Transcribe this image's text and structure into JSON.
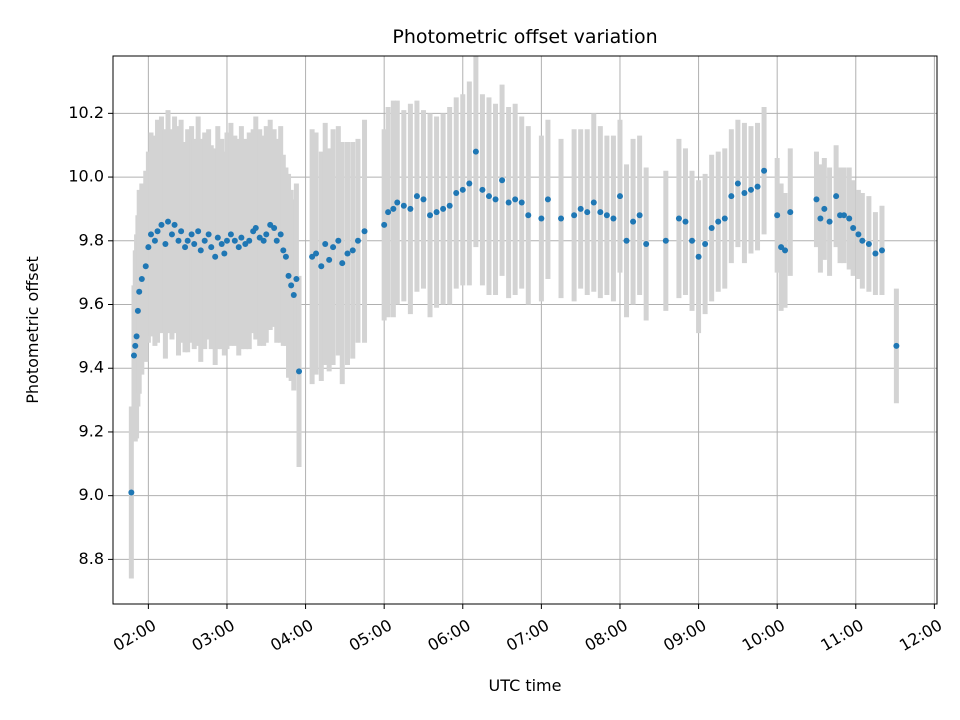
{
  "chart_data": {
    "type": "scatter",
    "title": "Photometric offset variation",
    "xlabel": "UTC time",
    "ylabel": "Photometric offset",
    "x_tick_labels": [
      "02:00",
      "03:00",
      "04:00",
      "05:00",
      "06:00",
      "07:00",
      "08:00",
      "09:00",
      "10:00",
      "11:00",
      "12:00"
    ],
    "y_tick_labels": [
      "8.8",
      "9.0",
      "9.2",
      "9.4",
      "9.6",
      "9.8",
      "10.0",
      "10.2"
    ],
    "x_ticks": [
      "02:00",
      "03:00",
      "04:00",
      "05:00",
      "06:00",
      "07:00",
      "08:00",
      "09:00",
      "10:00",
      "11:00",
      "12:00"
    ],
    "y_ticks": [
      8.8,
      9.0,
      9.2,
      9.4,
      9.6,
      9.8,
      10.0,
      10.2
    ],
    "xlim": [
      "01:33",
      "12:02"
    ],
    "ylim": [
      8.66,
      10.38
    ],
    "grid": true,
    "colors": {
      "point": "#1f77b4",
      "errorbar": "#d3d3d3",
      "grid": "#b0b0b0"
    },
    "series": [
      {
        "x": [
          "01:47",
          "01:49",
          "01:50",
          "01:51",
          "01:52",
          "01:53",
          "01:55",
          "01:58",
          "02:00",
          "02:02",
          "02:05",
          "02:07",
          "02:10",
          "02:13",
          "02:15",
          "02:18",
          "02:20",
          "02:23",
          "02:25",
          "02:28",
          "02:30",
          "02:33",
          "02:35",
          "02:38",
          "02:40",
          "02:43",
          "02:46",
          "02:48",
          "02:51",
          "02:53",
          "02:56",
          "02:58",
          "03:00",
          "03:03",
          "03:06",
          "03:09",
          "03:11",
          "03:14",
          "03:17",
          "03:20",
          "03:22",
          "03:25",
          "03:28",
          "03:30",
          "03:33",
          "03:36",
          "03:38",
          "03:41",
          "03:43",
          "03:45",
          "03:47",
          "03:49",
          "03:51",
          "03:53",
          "03:55",
          "04:05",
          "04:08",
          "04:12",
          "04:15",
          "04:18",
          "04:21",
          "04:25",
          "04:28",
          "04:32",
          "04:36",
          "04:40",
          "04:45",
          "05:00",
          "05:03",
          "05:07",
          "05:10",
          "05:15",
          "05:20",
          "05:25",
          "05:30",
          "05:35",
          "05:40",
          "05:45",
          "05:50",
          "05:55",
          "06:00",
          "06:05",
          "06:10",
          "06:15",
          "06:20",
          "06:25",
          "06:30",
          "06:35",
          "06:40",
          "06:45",
          "06:50",
          "07:00",
          "07:05",
          "07:15",
          "07:25",
          "07:30",
          "07:35",
          "07:40",
          "07:45",
          "07:50",
          "07:55",
          "08:00",
          "08:05",
          "08:10",
          "08:15",
          "08:20",
          "08:35",
          "08:45",
          "08:50",
          "08:55",
          "09:00",
          "09:05",
          "09:10",
          "09:15",
          "09:20",
          "09:25",
          "09:30",
          "09:35",
          "09:40",
          "09:45",
          "09:50",
          "10:00",
          "10:03",
          "10:06",
          "10:10",
          "10:30",
          "10:33",
          "10:36",
          "10:40",
          "10:45",
          "10:48",
          "10:51",
          "10:55",
          "10:58",
          "11:02",
          "11:05",
          "11:10",
          "11:15",
          "11:20",
          "11:31"
        ],
        "y": [
          9.01,
          9.44,
          9.47,
          9.5,
          9.58,
          9.64,
          9.68,
          9.72,
          9.78,
          9.82,
          9.8,
          9.83,
          9.85,
          9.79,
          9.86,
          9.82,
          9.85,
          9.8,
          9.83,
          9.78,
          9.8,
          9.82,
          9.79,
          9.83,
          9.77,
          9.8,
          9.82,
          9.78,
          9.75,
          9.81,
          9.79,
          9.76,
          9.8,
          9.82,
          9.8,
          9.78,
          9.81,
          9.79,
          9.8,
          9.83,
          9.84,
          9.81,
          9.8,
          9.82,
          9.85,
          9.84,
          9.8,
          9.82,
          9.77,
          9.75,
          9.69,
          9.66,
          9.63,
          9.68,
          9.39,
          9.75,
          9.76,
          9.72,
          9.79,
          9.74,
          9.78,
          9.8,
          9.73,
          9.76,
          9.77,
          9.8,
          9.83,
          9.85,
          9.89,
          9.9,
          9.92,
          9.91,
          9.9,
          9.94,
          9.93,
          9.88,
          9.89,
          9.9,
          9.91,
          9.95,
          9.96,
          9.98,
          10.08,
          9.96,
          9.94,
          9.93,
          9.99,
          9.92,
          9.93,
          9.92,
          9.88,
          9.87,
          9.93,
          9.87,
          9.88,
          9.9,
          9.89,
          9.92,
          9.89,
          9.88,
          9.87,
          9.94,
          9.8,
          9.86,
          9.88,
          9.79,
          9.8,
          9.87,
          9.86,
          9.8,
          9.75,
          9.79,
          9.84,
          9.86,
          9.87,
          9.94,
          9.98,
          9.95,
          9.96,
          9.97,
          10.02,
          9.88,
          9.78,
          9.77,
          9.89,
          9.93,
          9.87,
          9.9,
          9.86,
          9.94,
          9.88,
          9.88,
          9.87,
          9.84,
          9.82,
          9.8,
          9.79,
          9.76,
          9.77,
          9.47
        ],
        "err": [
          0.27,
          0.22,
          0.3,
          0.32,
          0.3,
          0.32,
          0.3,
          0.3,
          0.3,
          0.32,
          0.33,
          0.35,
          0.34,
          0.36,
          0.35,
          0.33,
          0.34,
          0.36,
          0.35,
          0.33,
          0.35,
          0.34,
          0.33,
          0.36,
          0.35,
          0.34,
          0.33,
          0.32,
          0.34,
          0.35,
          0.33,
          0.32,
          0.34,
          0.35,
          0.33,
          0.34,
          0.35,
          0.33,
          0.34,
          0.32,
          0.35,
          0.34,
          0.33,
          0.34,
          0.33,
          0.31,
          0.32,
          0.34,
          0.3,
          0.28,
          0.32,
          0.3,
          0.3,
          0.3,
          0.3,
          0.4,
          0.38,
          0.36,
          0.38,
          0.35,
          0.37,
          0.36,
          0.38,
          0.35,
          0.34,
          0.32,
          0.35,
          0.3,
          0.33,
          0.34,
          0.32,
          0.3,
          0.33,
          0.3,
          0.28,
          0.32,
          0.3,
          0.3,
          0.31,
          0.3,
          0.3,
          0.32,
          0.3,
          0.3,
          0.31,
          0.3,
          0.3,
          0.3,
          0.3,
          0.27,
          0.28,
          0.26,
          0.25,
          0.25,
          0.27,
          0.25,
          0.26,
          0.28,
          0.27,
          0.25,
          0.26,
          0.24,
          0.24,
          0.26,
          0.25,
          0.24,
          0.22,
          0.25,
          0.23,
          0.22,
          0.24,
          0.22,
          0.23,
          0.22,
          0.22,
          0.21,
          0.2,
          0.22,
          0.2,
          0.2,
          0.2,
          0.18,
          0.2,
          0.18,
          0.2,
          0.15,
          0.17,
          0.16,
          0.17,
          0.16,
          0.15,
          0.15,
          0.16,
          0.15,
          0.14,
          0.15,
          0.15,
          0.13,
          0.14,
          0.18
        ]
      }
    ]
  }
}
